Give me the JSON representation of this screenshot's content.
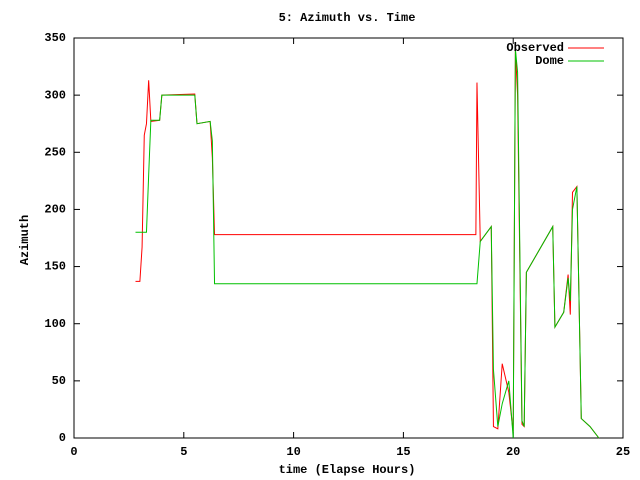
{
  "chart_data": {
    "type": "line",
    "title": "5: Azimuth vs. Time",
    "x_label": "time (Elapse Hours)",
    "y_label": "Azimuth",
    "x": [
      2.8,
      3.0,
      3.1,
      3.2,
      3.3,
      3.4,
      3.5,
      3.9,
      4.0,
      5.5,
      5.6,
      6.2,
      6.3,
      6.4,
      18.3,
      18.35,
      18.5,
      19.0,
      19.1,
      19.3,
      19.5,
      19.8,
      20.0,
      20.1,
      20.2,
      20.4,
      20.5,
      20.6,
      21.8,
      21.9,
      22.3,
      22.5,
      22.6,
      22.7,
      22.9,
      23.1,
      23.5,
      23.9
    ],
    "series": [
      {
        "name": "Observed",
        "color": "#ff0000",
        "values": [
          137,
          137,
          167,
          265,
          275,
          313,
          277,
          278,
          300,
          301,
          275,
          277,
          245,
          178,
          178,
          311,
          172,
          185,
          10,
          8,
          65,
          40,
          5,
          340,
          300,
          12,
          10,
          145,
          185,
          97,
          110,
          143,
          108,
          215,
          220,
          17,
          10,
          0
        ]
      },
      {
        "name": "Dome",
        "color": "#00c000",
        "values": [
          180,
          180,
          180,
          180,
          180,
          230,
          278,
          278,
          300,
          300,
          275,
          277,
          260,
          135,
          135,
          135,
          172,
          185,
          60,
          10,
          30,
          50,
          0,
          340,
          320,
          15,
          10,
          145,
          185,
          97,
          110,
          140,
          120,
          200,
          220,
          17,
          10,
          0
        ]
      }
    ],
    "xlim": [
      0,
      25
    ],
    "xticks": [
      0,
      5,
      10,
      15,
      20,
      25
    ],
    "ylim": [
      0,
      350
    ],
    "yticks": [
      0,
      50,
      100,
      150,
      200,
      250,
      300,
      350
    ],
    "legend": "top-right",
    "grid": false
  }
}
